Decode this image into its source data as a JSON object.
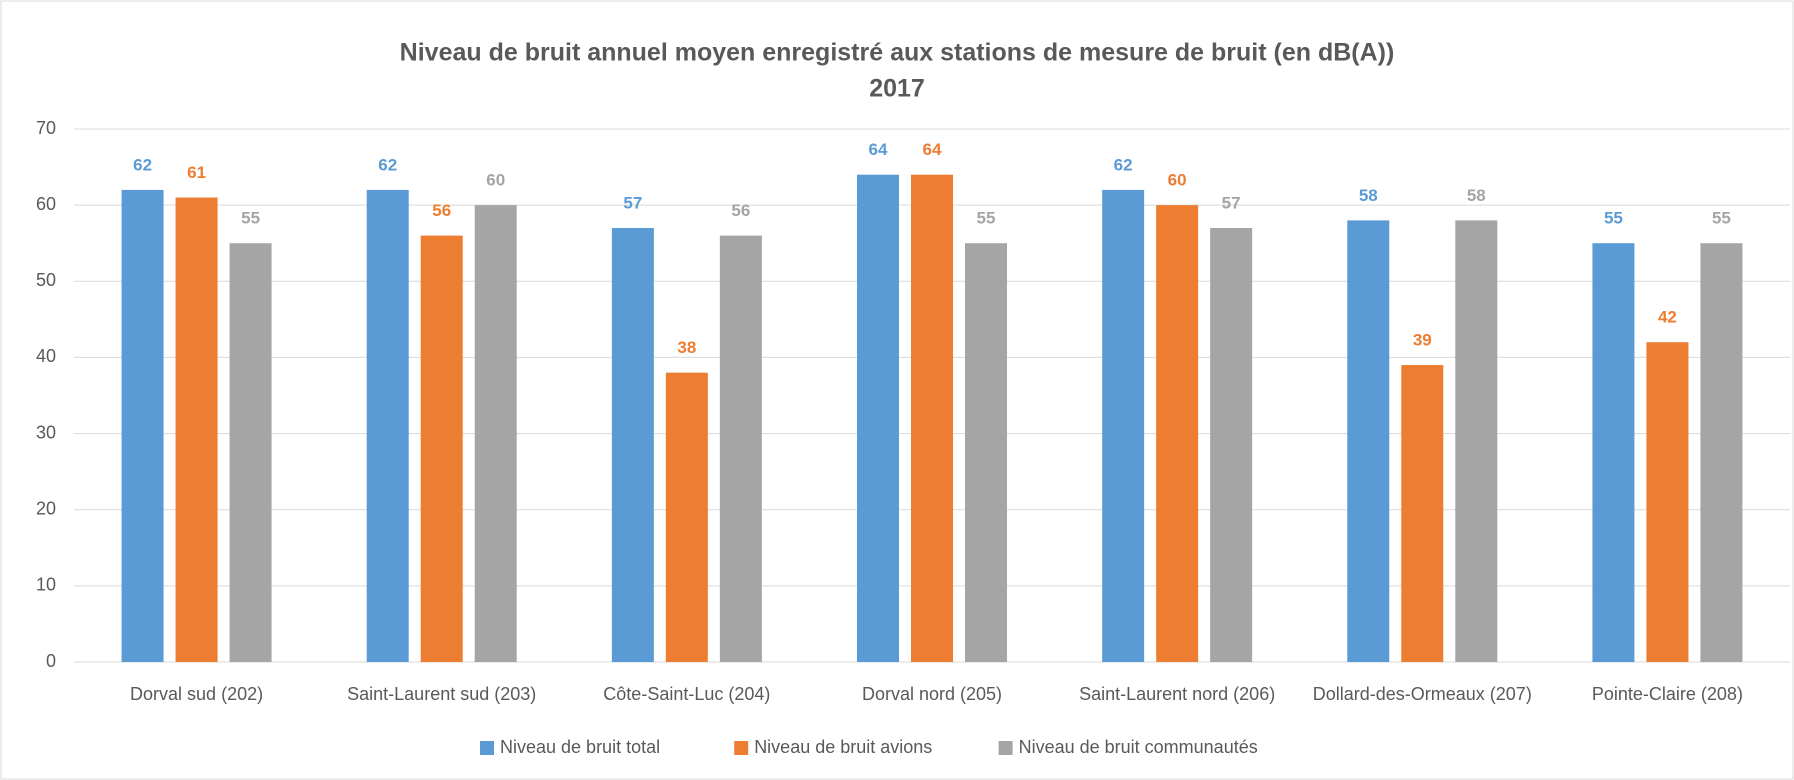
{
  "chart_data": {
    "type": "bar",
    "title": "Niveau de bruit annuel moyen enregistré aux stations de mesure de bruit (en dB(A))",
    "subtitle": "2017",
    "categories": [
      "Dorval sud (202)",
      "Saint-Laurent sud (203)",
      "Côte-Saint-Luc (204)",
      "Dorval nord (205)",
      "Saint-Laurent nord (206)",
      "Dollard-des-Ormeaux (207)",
      "Pointe-Claire (208)"
    ],
    "series": [
      {
        "name": "Niveau de bruit total",
        "color": "#5b9bd5",
        "values": [
          62,
          62,
          57,
          64,
          62,
          58,
          55
        ]
      },
      {
        "name": "Niveau de bruit avions",
        "color": "#ed7d31",
        "values": [
          61,
          56,
          38,
          64,
          60,
          39,
          42
        ]
      },
      {
        "name": "Niveau de bruit communautés",
        "color": "#a5a5a5",
        "values": [
          55,
          60,
          56,
          55,
          57,
          58,
          55
        ]
      }
    ],
    "ylim": [
      0,
      70
    ],
    "yticks": [
      0,
      10,
      20,
      30,
      40,
      50,
      60,
      70
    ],
    "grid": true,
    "legend": "bottom"
  }
}
